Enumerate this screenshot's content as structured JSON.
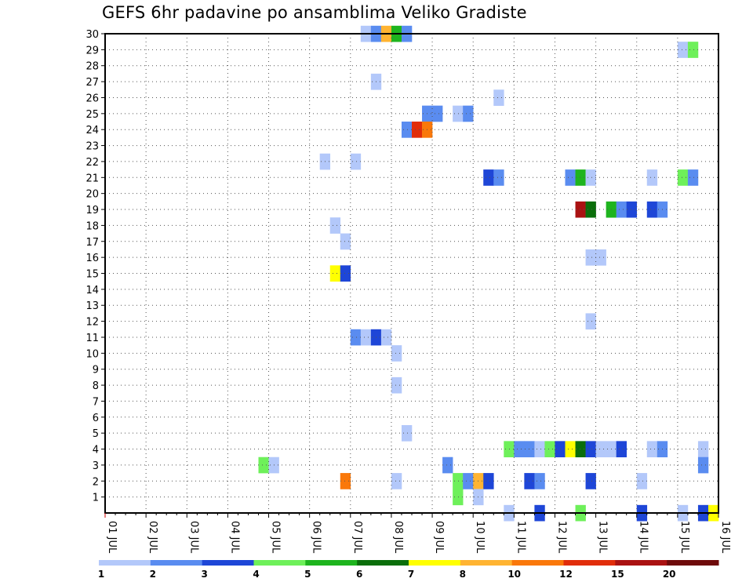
{
  "chart_data": {
    "type": "heatmap",
    "title": "GEFS 6hr padavine po ansamblima Veliko Gradiste",
    "x_tick_labels": [
      "01 JUL",
      "02 JUL",
      "03 JUL",
      "04 JUL",
      "05 JUL",
      "06 JUL",
      "07 JUL",
      "08 JUL",
      "09 JUL",
      "10 JUL",
      "11 JUL",
      "12 JUL",
      "13 JUL",
      "14 JUL",
      "15 JUL",
      "16 JUL"
    ],
    "y_tick_labels": [
      "1",
      "2",
      "3",
      "4",
      "5",
      "6",
      "7",
      "8",
      "9",
      "10",
      "11",
      "12",
      "13",
      "14",
      "15",
      "16",
      "17",
      "18",
      "19",
      "20",
      "21",
      "22",
      "23",
      "24",
      "25",
      "26",
      "27",
      "28",
      "29",
      "30"
    ],
    "x_range_days": [
      0,
      15
    ],
    "y_range": [
      0,
      30
    ],
    "grid": true,
    "legend": {
      "placement": "bottom",
      "labels": [
        "1",
        "2",
        "3",
        "4",
        "5",
        "6",
        "7",
        "8",
        "10",
        "12",
        "15",
        "20"
      ],
      "colors": [
        "#b3c8fa",
        "#5a8cf0",
        "#1e46d7",
        "#6ef05a",
        "#1eb41e",
        "#0a6e0a",
        "#ffff00",
        "#ffb432",
        "#fa780a",
        "#e12d0a",
        "#aa1212",
        "#6e0a0a"
      ]
    },
    "cells_note_units": "x = day offset from 01 JUL 00 UTC (6-hour steps), y = ensemble member, value = color class index",
    "cells": [
      [
        6.25,
        30,
        1
      ],
      [
        6.5,
        30,
        2
      ],
      [
        6.75,
        30,
        8
      ],
      [
        7.0,
        30,
        5
      ],
      [
        7.25,
        30,
        2
      ],
      [
        14.0,
        29,
        1
      ],
      [
        14.25,
        29,
        4
      ],
      [
        6.5,
        27,
        1
      ],
      [
        9.5,
        26,
        1
      ],
      [
        7.75,
        25,
        2
      ],
      [
        8.0,
        25,
        2
      ],
      [
        8.5,
        25,
        1
      ],
      [
        8.75,
        25,
        2
      ],
      [
        7.25,
        24,
        2
      ],
      [
        7.5,
        24,
        10
      ],
      [
        7.75,
        24,
        9
      ],
      [
        5.25,
        22,
        1
      ],
      [
        6.0,
        22,
        1
      ],
      [
        9.25,
        21,
        3
      ],
      [
        9.5,
        21,
        2
      ],
      [
        11.25,
        21,
        2
      ],
      [
        11.5,
        21,
        5
      ],
      [
        11.75,
        21,
        1
      ],
      [
        13.25,
        21,
        1
      ],
      [
        14.0,
        21,
        4
      ],
      [
        14.25,
        21,
        2
      ],
      [
        11.5,
        19,
        11
      ],
      [
        11.75,
        19,
        6
      ],
      [
        12.25,
        19,
        5
      ],
      [
        12.5,
        19,
        2
      ],
      [
        12.75,
        19,
        3
      ],
      [
        13.25,
        19,
        3
      ],
      [
        13.5,
        19,
        2
      ],
      [
        5.5,
        18,
        1
      ],
      [
        5.75,
        17,
        1
      ],
      [
        11.75,
        16,
        1
      ],
      [
        12.0,
        16,
        1
      ],
      [
        5.5,
        15,
        7
      ],
      [
        5.75,
        15,
        3
      ],
      [
        11.75,
        12,
        1
      ],
      [
        6.0,
        11,
        2
      ],
      [
        6.25,
        11,
        1
      ],
      [
        6.5,
        11,
        3
      ],
      [
        6.75,
        11,
        1
      ],
      [
        7.0,
        10,
        1
      ],
      [
        7.0,
        8,
        1
      ],
      [
        7.25,
        5,
        1
      ],
      [
        9.75,
        4,
        4
      ],
      [
        10.0,
        4,
        2
      ],
      [
        10.25,
        4,
        2
      ],
      [
        10.5,
        4,
        1
      ],
      [
        10.75,
        4,
        4
      ],
      [
        11.0,
        4,
        3
      ],
      [
        11.25,
        4,
        7
      ],
      [
        11.5,
        4,
        6
      ],
      [
        11.75,
        4,
        3
      ],
      [
        12.0,
        4,
        1
      ],
      [
        12.25,
        4,
        1
      ],
      [
        12.5,
        4,
        3
      ],
      [
        13.25,
        4,
        1
      ],
      [
        13.5,
        4,
        2
      ],
      [
        14.5,
        4,
        1
      ],
      [
        3.75,
        3,
        4
      ],
      [
        4.0,
        3,
        1
      ],
      [
        8.25,
        3,
        2
      ],
      [
        14.5,
        3,
        2
      ],
      [
        5.75,
        2,
        9
      ],
      [
        7.0,
        2,
        1
      ],
      [
        8.5,
        2,
        4
      ],
      [
        8.75,
        2,
        2
      ],
      [
        9.0,
        2,
        8
      ],
      [
        9.25,
        2,
        3
      ],
      [
        10.25,
        2,
        3
      ],
      [
        10.5,
        2,
        2
      ],
      [
        11.75,
        2,
        3
      ],
      [
        13.0,
        2,
        1
      ],
      [
        8.5,
        1,
        4
      ],
      [
        9.0,
        1,
        1
      ],
      [
        9.75,
        0,
        1
      ],
      [
        10.5,
        0,
        3
      ],
      [
        11.5,
        0,
        4
      ],
      [
        13.0,
        0,
        3
      ],
      [
        14.0,
        0,
        1
      ],
      [
        14.5,
        0,
        3
      ],
      [
        14.75,
        0,
        7
      ]
    ]
  }
}
